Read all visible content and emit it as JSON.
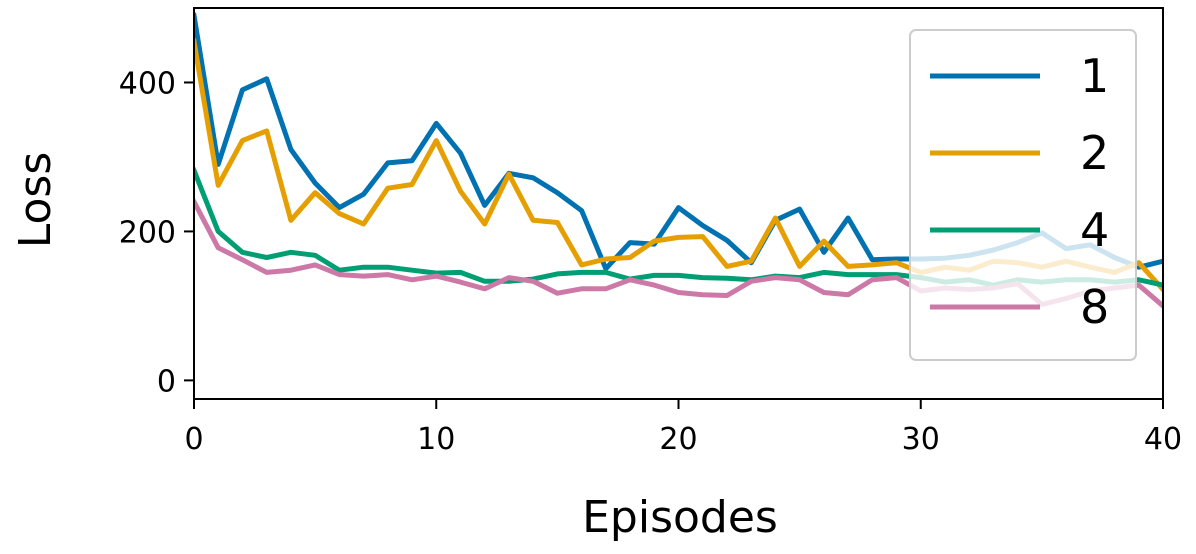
{
  "chart_data": {
    "type": "line",
    "xlabel": "Episodes",
    "ylabel": "Loss",
    "xlim": [
      0,
      40
    ],
    "ylim": [
      -25,
      500
    ],
    "xticks": [
      0,
      10,
      20,
      30,
      40
    ],
    "yticks": [
      0,
      200,
      400
    ],
    "grid": false,
    "legend_position": "right",
    "x": [
      0,
      1,
      2,
      3,
      4,
      5,
      6,
      7,
      8,
      9,
      10,
      11,
      12,
      13,
      14,
      15,
      16,
      17,
      18,
      19,
      20,
      21,
      22,
      23,
      24,
      25,
      26,
      27,
      28,
      29,
      30,
      31,
      32,
      33,
      34,
      35,
      36,
      37,
      38,
      39,
      40
    ],
    "series": [
      {
        "name": "1",
        "color": "#0072B2",
        "values": [
          490,
          290,
          390,
          405,
          310,
          265,
          232,
          250,
          292,
          295,
          345,
          305,
          235,
          278,
          272,
          252,
          228,
          150,
          185,
          183,
          232,
          208,
          188,
          158,
          215,
          230,
          172,
          218,
          162,
          163,
          163,
          164,
          168,
          175,
          185,
          198,
          177,
          182,
          165,
          152,
          160
        ]
      },
      {
        "name": "2",
        "color": "#E69F00",
        "values": [
          455,
          262,
          322,
          335,
          215,
          252,
          224,
          210,
          258,
          263,
          322,
          254,
          210,
          277,
          215,
          212,
          155,
          163,
          165,
          187,
          192,
          193,
          153,
          160,
          218,
          153,
          187,
          153,
          155,
          158,
          145,
          152,
          148,
          160,
          158,
          152,
          160,
          152,
          145,
          158,
          122
        ]
      },
      {
        "name": "4",
        "color": "#009E73",
        "values": [
          282,
          200,
          172,
          165,
          172,
          168,
          148,
          152,
          152,
          148,
          144,
          145,
          133,
          133,
          136,
          143,
          145,
          145,
          136,
          141,
          141,
          138,
          137,
          135,
          140,
          138,
          145,
          142,
          142,
          142,
          138,
          132,
          135,
          128,
          135,
          132,
          135,
          135,
          132,
          135,
          128
        ]
      },
      {
        "name": "8",
        "color": "#CC79A7",
        "values": [
          240,
          178,
          162,
          145,
          148,
          155,
          142,
          140,
          142,
          135,
          140,
          132,
          123,
          138,
          133,
          117,
          123,
          123,
          135,
          128,
          118,
          115,
          114,
          133,
          138,
          135,
          118,
          115,
          135,
          138,
          120,
          124,
          122,
          124,
          130,
          102,
          110,
          120,
          124,
          128,
          100
        ]
      }
    ]
  }
}
